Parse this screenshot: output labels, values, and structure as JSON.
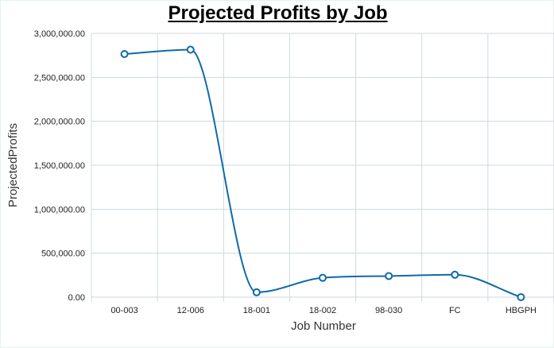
{
  "chart_data": {
    "type": "line",
    "title": "Projected Profits by Job",
    "xlabel": "Job Number",
    "ylabel": "ProjectedProfits",
    "categories": [
      "00-003",
      "12-006",
      "18-001",
      "18-002",
      "98-030",
      "FC",
      "HBGPH"
    ],
    "series": [
      {
        "values": [
          2765000,
          2815000,
          55000,
          220000,
          240000,
          255000,
          0
        ]
      }
    ],
    "ylim": [
      0,
      3000000
    ],
    "yticks": [
      0,
      500000,
      1000000,
      1500000,
      2000000,
      2500000,
      3000000
    ],
    "ytick_labels": [
      "0.00",
      "500,000.00",
      "1,000,000.00",
      "1,500,000.00",
      "2,000,000.00",
      "2,500,000.00",
      "3,000,000.00"
    ],
    "smooth": true,
    "grid": true,
    "colors": {
      "line": "#0f6aa6",
      "marker_fill": "#ffffff",
      "grid": "#ccd9df"
    }
  }
}
